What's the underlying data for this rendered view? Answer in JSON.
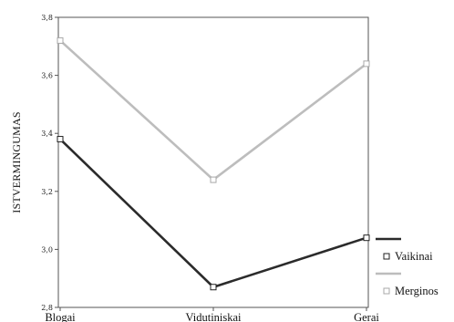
{
  "chart_data": {
    "type": "line",
    "categories": [
      "Blogai",
      "Vidutiniskai",
      "Gerai"
    ],
    "series": [
      {
        "name": "Vaikinai",
        "values": [
          3.38,
          2.87,
          3.04
        ],
        "color": "#2b2b2b"
      },
      {
        "name": "Merginos",
        "values": [
          3.72,
          3.24,
          3.64
        ],
        "color": "#bdbdbd"
      }
    ],
    "ylabel": "ISTVERMINGUMAS",
    "xlabel": "",
    "ylim": [
      2.8,
      3.8
    ],
    "yticks": [
      "2,8",
      "3,0",
      "3,2",
      "3,4",
      "3,6",
      "3,8"
    ],
    "grid": false,
    "legend": "right",
    "marker": "square-open"
  }
}
